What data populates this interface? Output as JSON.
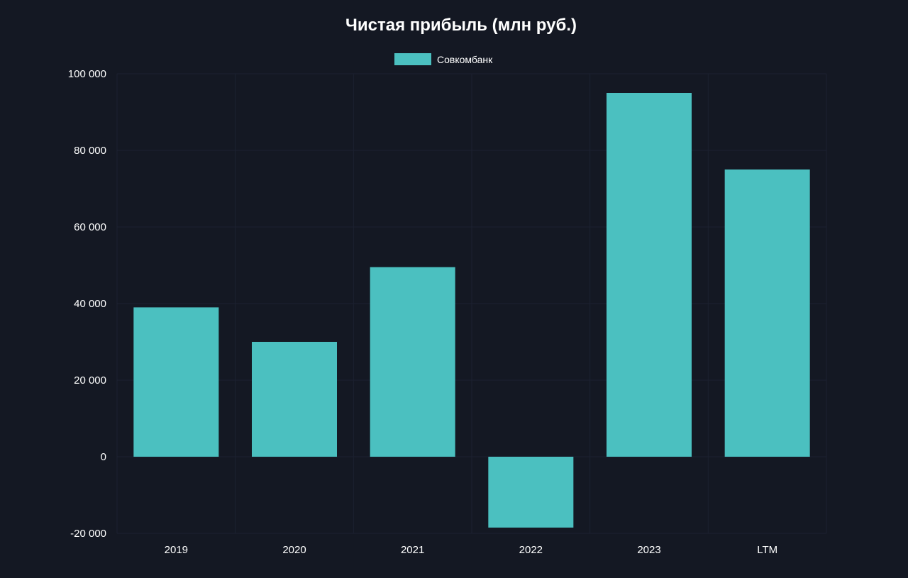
{
  "chart_data": {
    "type": "bar",
    "title": "Чистая прибыль  (млн руб.)",
    "xlabel": "",
    "ylabel": "",
    "categories": [
      "2019",
      "2020",
      "2021",
      "2022",
      "2023",
      "LTM"
    ],
    "series": [
      {
        "name": "Совкомбанк",
        "values": [
          39000,
          30000,
          49500,
          -18500,
          95000,
          75000
        ],
        "color": "#4bc0c0"
      }
    ],
    "ylim": [
      -20000,
      100000
    ],
    "yticks": [
      100000,
      80000,
      60000,
      40000,
      20000,
      0,
      -20000
    ],
    "ytick_labels": [
      "100 000",
      "80 000",
      "60 000",
      "40 000",
      "20 000",
      "0",
      "-20 000"
    ],
    "grid": true,
    "legend_position": "top-center"
  },
  "colors": {
    "background": "#141823",
    "grid": "#1c2130",
    "text": "#ffffff"
  }
}
